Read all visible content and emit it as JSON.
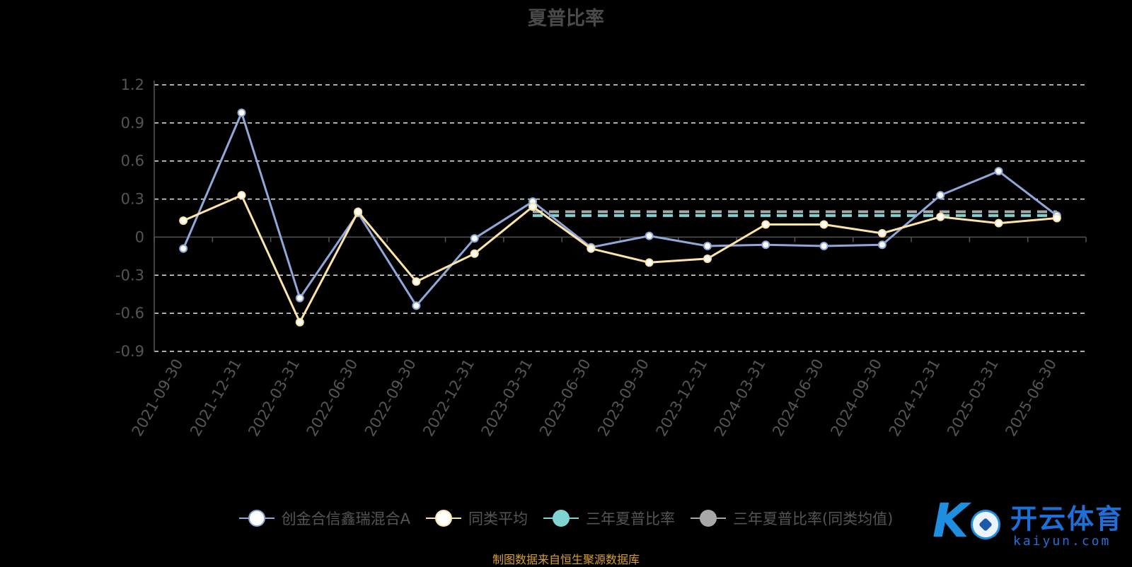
{
  "chart_data": {
    "type": "line",
    "title": "夏普比率",
    "categories": [
      "2021-09-30",
      "2021-12-31",
      "2022-03-31",
      "2022-06-30",
      "2022-09-30",
      "2022-12-31",
      "2023-03-31",
      "2023-06-30",
      "2023-09-30",
      "2023-12-31",
      "2024-03-31",
      "2024-06-30",
      "2024-09-30",
      "2024-12-31",
      "2025-03-31",
      "2025-06-30"
    ],
    "yticks": [
      "1.2",
      "0.9",
      "0.6",
      "0.3",
      "0",
      "-0.3",
      "-0.6",
      "-0.9"
    ],
    "ylim": [
      -0.9,
      1.2
    ],
    "grid": true,
    "legend_position": "bottom",
    "series": [
      {
        "name": "创金合信鑫瑞混合A",
        "color": "#8fa8d8",
        "marker_fill": "#ffffff",
        "values": [
          -0.09,
          0.98,
          -0.48,
          0.19,
          -0.54,
          -0.01,
          0.28,
          -0.08,
          0.01,
          -0.07,
          -0.06,
          -0.07,
          -0.06,
          0.33,
          0.52,
          0.17
        ]
      },
      {
        "name": "同类平均",
        "color": "#fce3a8",
        "marker_fill": "#ffffff",
        "values": [
          0.13,
          0.33,
          -0.67,
          0.2,
          -0.35,
          -0.13,
          0.24,
          -0.09,
          -0.2,
          -0.17,
          0.1,
          0.1,
          0.03,
          0.16,
          0.11,
          0.15
        ]
      },
      {
        "name": "三年夏普比率",
        "color": "#7fd3d3",
        "marker_fill": "#7fd3d3",
        "dashed": true,
        "values": [
          null,
          null,
          null,
          null,
          null,
          null,
          0.17,
          0.17,
          0.17,
          0.17,
          0.17,
          0.17,
          0.17,
          0.17,
          0.17,
          0.17
        ]
      },
      {
        "name": "三年夏普比率(同类均值)",
        "color": "#a8a8a8",
        "marker_fill": "#a8a8a8",
        "dashed": true,
        "values": [
          null,
          null,
          null,
          null,
          null,
          null,
          0.2,
          0.2,
          0.2,
          0.2,
          0.2,
          0.2,
          0.2,
          0.2,
          0.2,
          0.2
        ]
      }
    ]
  },
  "source_note": "制图数据来自恒生聚源数据库",
  "logo": {
    "mark": "K",
    "name_cn": "开云体育",
    "name_en": "kaiyun.com"
  }
}
